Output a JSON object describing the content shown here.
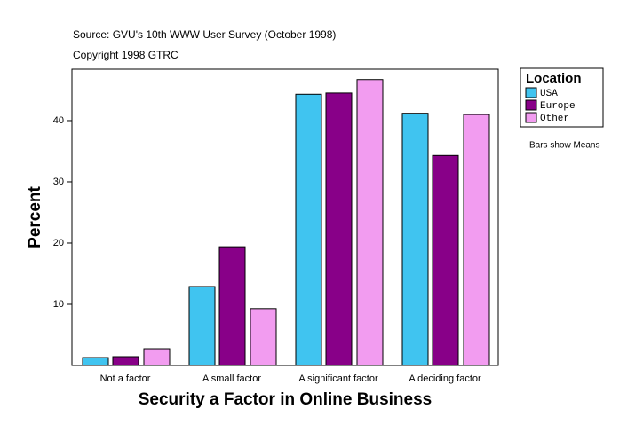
{
  "chart_data": {
    "type": "bar",
    "source": "Source: GVU's 10th WWW User Survey (October 1998)",
    "copyright": "Copyright 1998 GTRC",
    "x_label": "Security a Factor in Online Business",
    "y_label": "Percent",
    "legend_title": "Location",
    "note": "Bars show Means",
    "categories": [
      "Not a factor",
      "A small factor",
      "A significant factor",
      "A deciding factor"
    ],
    "series": [
      {
        "name": "USA",
        "color": "#40c4f0",
        "values": [
          1.3,
          12.9,
          44.3,
          41.2
        ]
      },
      {
        "name": "Europe",
        "color": "#880088",
        "values": [
          1.45,
          19.4,
          44.5,
          34.3
        ]
      },
      {
        "name": "Other",
        "color": "#f29cf0",
        "values": [
          2.75,
          9.3,
          46.7,
          41.0
        ]
      }
    ],
    "ylim": [
      0,
      48.4
    ],
    "yticks": [
      10,
      20,
      30,
      40
    ]
  }
}
